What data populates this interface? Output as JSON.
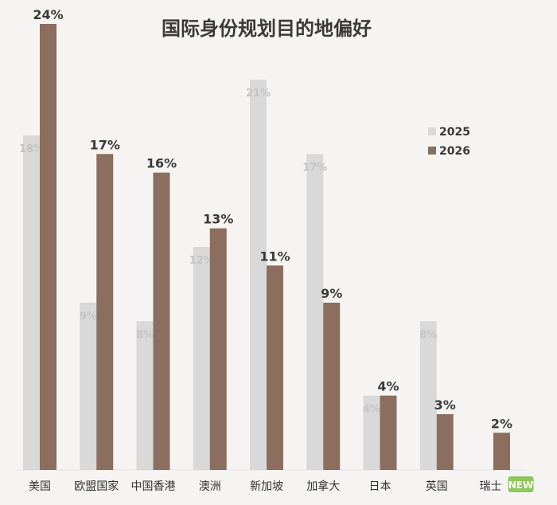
{
  "chart_data": {
    "type": "bar",
    "title": "国际身份规划目的地偏好",
    "categories": [
      "美国",
      "欧盟国家",
      "中国香港",
      "澳洲",
      "新加坡",
      "加拿大",
      "日本",
      "英国",
      "瑞士"
    ],
    "series": [
      {
        "name": "2025",
        "values": [
          18,
          9,
          8,
          12,
          21,
          17,
          4,
          8,
          null
        ],
        "labels": [
          "18%",
          "9%",
          "8%",
          "12%",
          "21%",
          "17%",
          "4%",
          "8%",
          null
        ],
        "color": "#d9d9d9",
        "label_color": "#c4c4c4"
      },
      {
        "name": "2026",
        "values": [
          24,
          17,
          16,
          13,
          11,
          9,
          4,
          3,
          2
        ],
        "labels": [
          "24%",
          "17%",
          "16%",
          "13%",
          "11%",
          "9%",
          "4%",
          "3%",
          "2%"
        ],
        "color": "#8c6e5e",
        "label_color": "#3a3a3a"
      }
    ],
    "ylim": [
      0,
      24
    ],
    "grid": false,
    "legend_position": "top-right",
    "badge": {
      "text": "NEW",
      "category": "瑞士",
      "color": "#8cc85a"
    }
  }
}
